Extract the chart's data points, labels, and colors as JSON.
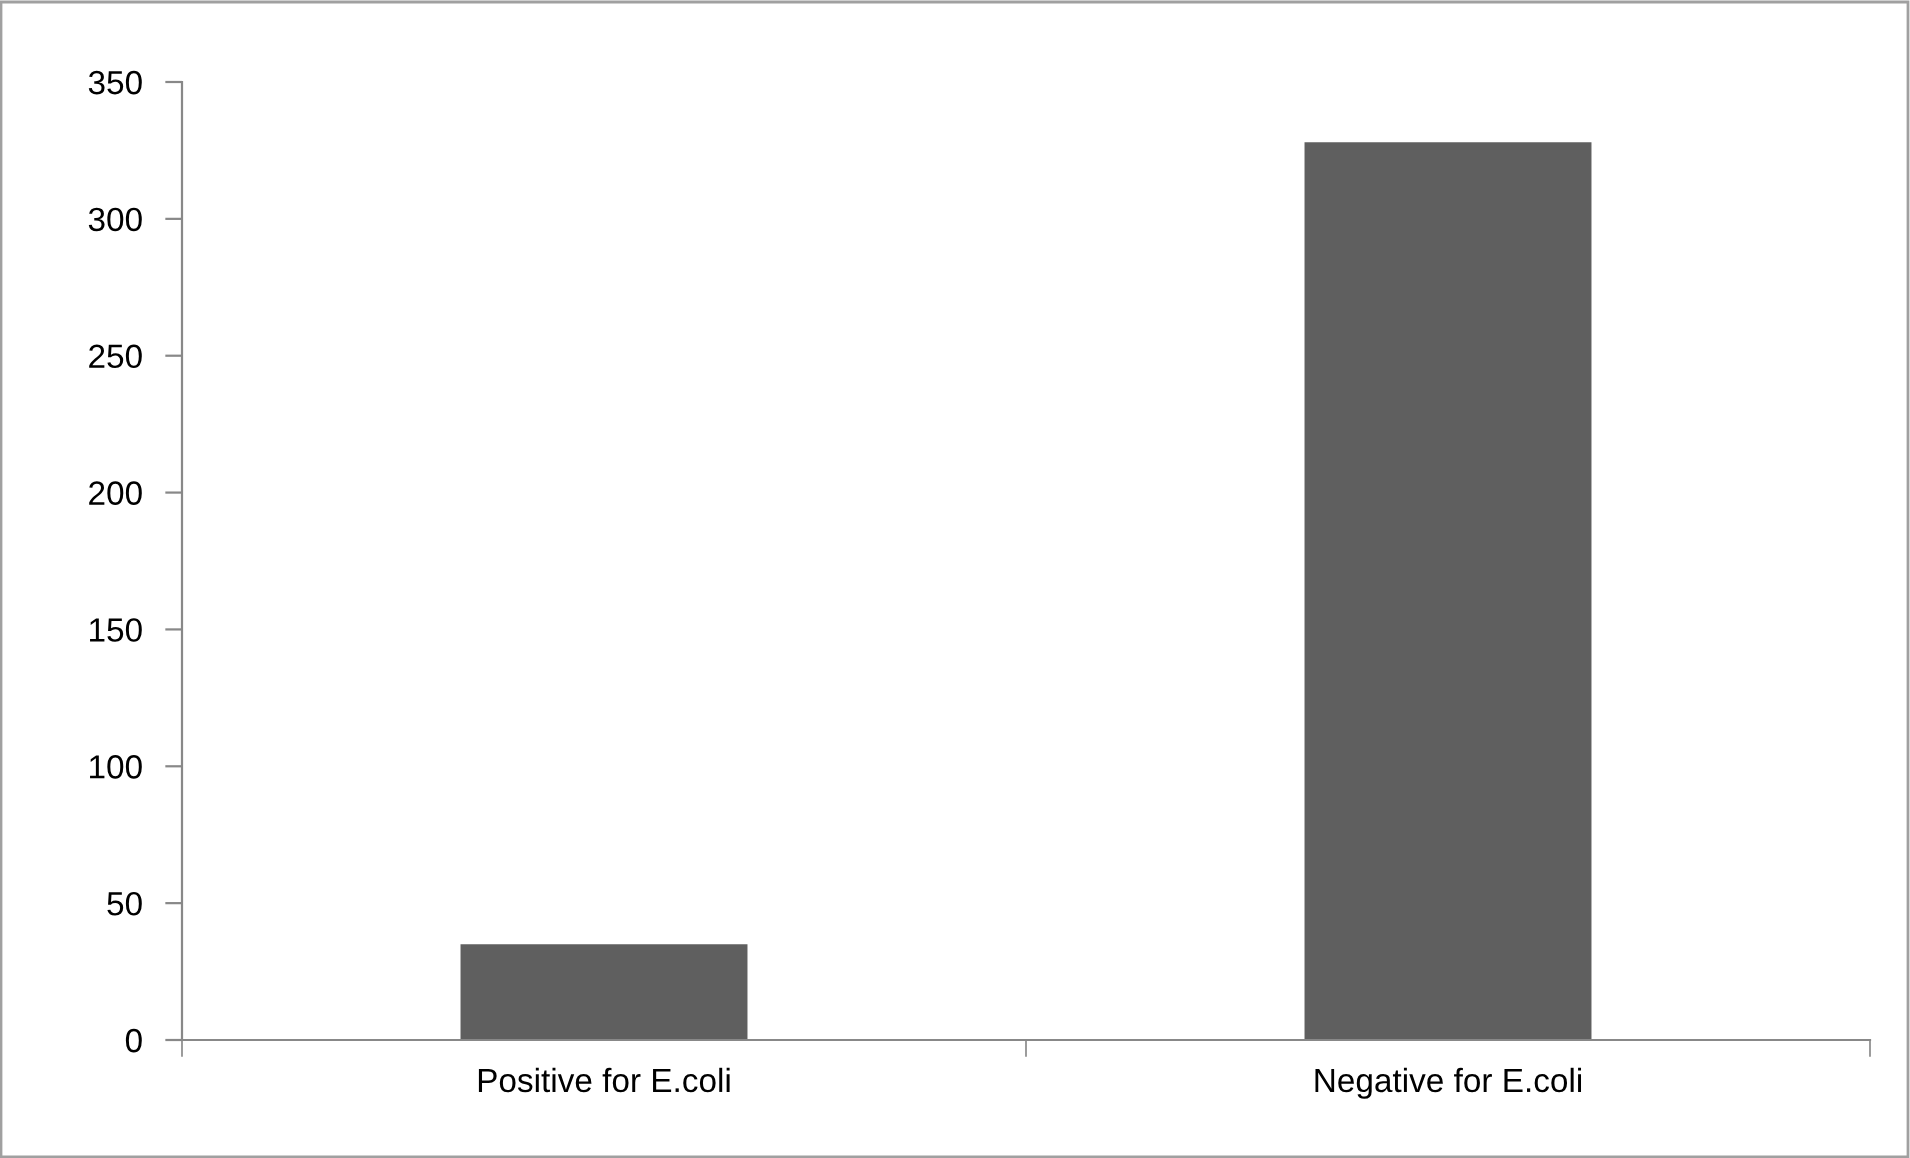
{
  "chart_data": {
    "type": "bar",
    "categories": [
      "Positive for E.coli",
      "Negative for E.coli"
    ],
    "values": [
      35,
      328
    ],
    "color": "#5f5f5f",
    "ylim": [
      0,
      350
    ],
    "yticks": [
      0,
      50,
      100,
      150,
      200,
      250,
      300,
      350
    ],
    "grid": false,
    "legend": false
  }
}
